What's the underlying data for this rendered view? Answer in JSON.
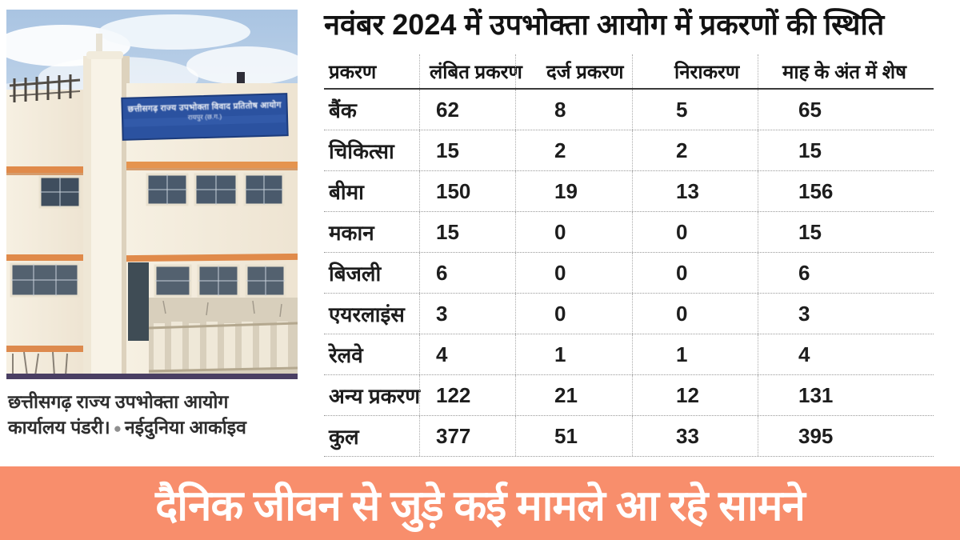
{
  "photo": {
    "signboard_line1": "छत्तीसगढ़ राज्य उपभोक्ता विवाद प्रतितोष आयोग",
    "signboard_line2": "रायपुर (छ.ग.)",
    "caption_line1": "छत्तीसगढ़ राज्य उपभोक्ता आयोग",
    "caption_line2": "कार्यालय पंडरी।",
    "caption_bullet": "●",
    "caption_credit": "नईदुनिया आर्काइव"
  },
  "table": {
    "title": "नवंबर 2024 में उपभोक्ता आयोग में प्रकरणों की स्थिति",
    "columns": [
      "प्रकरण",
      "लंबित प्रकरण",
      "दर्ज प्रकरण",
      "निराकरण",
      "माह के अंत में शेष"
    ],
    "rows": [
      {
        "label": "बैंक",
        "values": [
          "62",
          "8",
          "5",
          "65"
        ]
      },
      {
        "label": "चिकित्सा",
        "values": [
          "15",
          "2",
          "2",
          "15"
        ]
      },
      {
        "label": "बीमा",
        "values": [
          "150",
          "19",
          "13",
          "156"
        ]
      },
      {
        "label": "मकान",
        "values": [
          "15",
          "0",
          "0",
          "15"
        ]
      },
      {
        "label": "बिजली",
        "values": [
          "6",
          "0",
          "0",
          "6"
        ]
      },
      {
        "label": "एयरलाइंस",
        "values": [
          "3",
          "0",
          "0",
          "3"
        ]
      },
      {
        "label": "रेलवे",
        "values": [
          "4",
          "1",
          "1",
          "4"
        ]
      },
      {
        "label": "अन्य प्रकरण",
        "values": [
          "122",
          "21",
          "12",
          "131"
        ]
      },
      {
        "label": "कुल",
        "values": [
          "377",
          "51",
          "33",
          "395"
        ]
      }
    ]
  },
  "chart_data": {
    "type": "table",
    "title": "नवंबर 2024 में उपभोक्ता आयोग में प्रकरणों की स्थिति",
    "columns": [
      "प्रकरण",
      "लंबित प्रकरण",
      "दर्ज प्रकरण",
      "निराकरण",
      "माह के अंत में शेष"
    ],
    "rows": [
      [
        "बैंक",
        62,
        8,
        5,
        65
      ],
      [
        "चिकित्सा",
        15,
        2,
        2,
        15
      ],
      [
        "बीमा",
        150,
        19,
        13,
        156
      ],
      [
        "मकान",
        15,
        0,
        0,
        15
      ],
      [
        "बिजली",
        6,
        0,
        0,
        6
      ],
      [
        "एयरलाइंस",
        3,
        0,
        0,
        3
      ],
      [
        "रेलवे",
        4,
        1,
        1,
        4
      ],
      [
        "अन्य प्रकरण",
        122,
        21,
        12,
        131
      ],
      [
        "कुल",
        377,
        51,
        33,
        395
      ]
    ]
  },
  "banner": {
    "text": "दैनिक जीवन से जुड़े कई मामले आ रहे सामने",
    "background": "#F88E6C",
    "text_color": "#FFFFFF"
  },
  "colors": {
    "signboard_blue": "#2B52A0",
    "band_orange": "#E08A4A",
    "photo_bottom_line": "#4A3F63",
    "header_rule": "#3A3A3A",
    "dotted_line": "#9A9A9A"
  }
}
